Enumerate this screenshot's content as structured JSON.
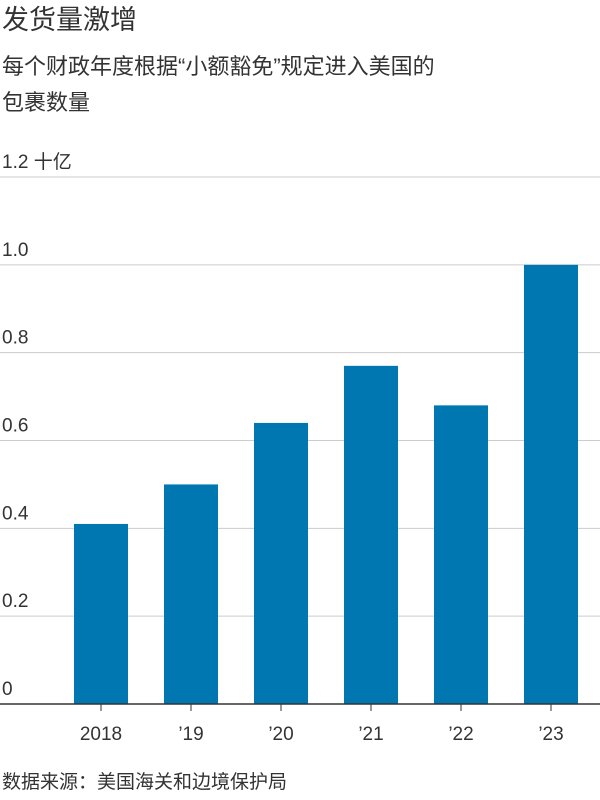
{
  "chart_data": {
    "type": "bar",
    "title": "发货量激增",
    "subtitle": [
      "每个财政年度根据“小额豁免”规定进入美国的",
      "包裹数量"
    ],
    "categories": [
      "2018",
      "’19",
      "’20",
      "’21",
      "’22",
      "’23"
    ],
    "values": [
      0.41,
      0.5,
      0.64,
      0.77,
      0.68,
      1.0
    ],
    "color": "#0077b0",
    "ylim": [
      0,
      1.2
    ],
    "yticks": [
      0,
      0.2,
      0.4,
      0.6,
      0.8,
      {
        "value": 1.0,
        "label": "1.0"
      },
      {
        "value": 1.2,
        "label": "1.2 十亿"
      }
    ],
    "grid": true,
    "source": "数据来源：美国海关和边境保护局"
  }
}
